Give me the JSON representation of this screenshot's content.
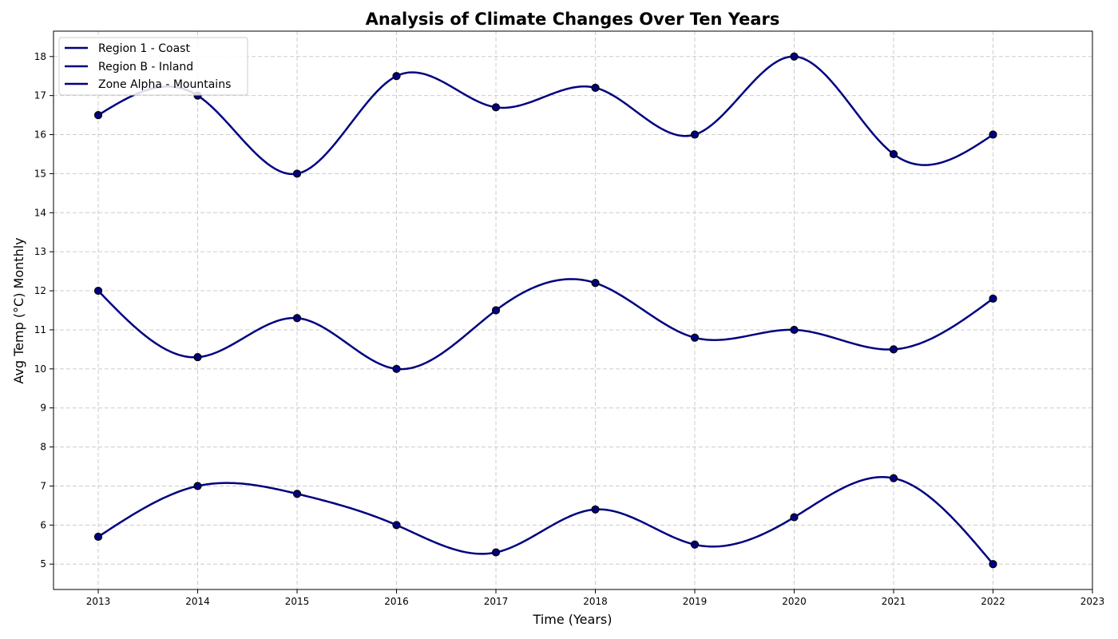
{
  "chart_data": {
    "type": "line",
    "title": "Analysis of Climate Changes Over Ten Years",
    "xlabel": "Time (Years)",
    "ylabel": "Avg Temp (°C) Monthly",
    "x": [
      2013,
      2014,
      2015,
      2016,
      2017,
      2018,
      2019,
      2020,
      2021,
      2022
    ],
    "xlim": [
      2012.55,
      2023
    ],
    "ylim": [
      4.35,
      18.65
    ],
    "x_ticks": [
      2013,
      2014,
      2015,
      2016,
      2017,
      2018,
      2019,
      2020,
      2021,
      2022,
      2023
    ],
    "y_ticks": [
      5,
      6,
      7,
      8,
      9,
      10,
      11,
      12,
      13,
      14,
      15,
      16,
      17,
      18
    ],
    "grid": true,
    "legend_position": "top-left",
    "series": [
      {
        "name": "Region 1 - Coast",
        "values": [
          16.5,
          17.0,
          15.0,
          17.5,
          16.7,
          17.2,
          16.0,
          18.0,
          15.5,
          16.0
        ]
      },
      {
        "name": "Region B - Inland",
        "values": [
          12.0,
          10.3,
          11.3,
          10.0,
          11.5,
          12.2,
          10.8,
          11.0,
          10.5,
          11.8
        ]
      },
      {
        "name": "Zone Alpha - Mountains",
        "values": [
          5.7,
          7.0,
          6.8,
          6.0,
          5.3,
          6.4,
          5.5,
          6.2,
          7.2,
          5.0
        ]
      }
    ],
    "line_color": "#000080",
    "marker_edge_color": "#000000"
  }
}
